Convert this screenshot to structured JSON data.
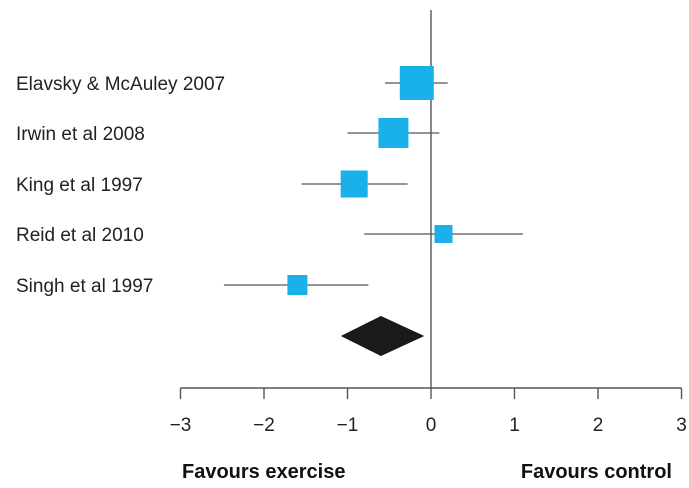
{
  "chart_data": {
    "type": "forest",
    "studies": [
      {
        "label": "Elavsky & McAuley 2007",
        "estimate": -0.17,
        "ci": [
          -0.55,
          0.2
        ]
      },
      {
        "label": "Irwin et al 2008",
        "estimate": -0.45,
        "ci": [
          -1.0,
          0.1
        ]
      },
      {
        "label": "King et al 1997",
        "estimate": -0.92,
        "ci": [
          -1.55,
          -0.28
        ]
      },
      {
        "label": "Reid et al 2010",
        "estimate": 0.15,
        "ci": [
          -0.8,
          1.1
        ]
      },
      {
        "label": "Singh et al 1997",
        "estimate": -1.6,
        "ci": [
          -2.48,
          -0.75
        ]
      }
    ],
    "pooled": {
      "estimate": -0.6,
      "ci": [
        -1.08,
        -0.08
      ]
    },
    "x_ticks": [
      "−3",
      "−2",
      "−1",
      "0",
      "1",
      "2",
      "3"
    ],
    "x_tick_values": [
      -3,
      -2,
      -1,
      0,
      1,
      2,
      3
    ],
    "xlim": [
      -3,
      3
    ],
    "null_line": 0,
    "left_caption": "Favours exercise",
    "right_caption": "Favours control",
    "colors": {
      "marker": "#1ab0ea",
      "diamond": "#1a1a1a",
      "line": "#555555"
    }
  }
}
